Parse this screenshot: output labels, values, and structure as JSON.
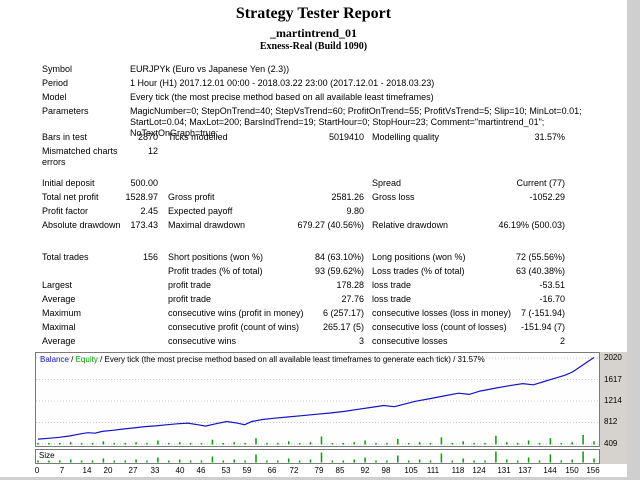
{
  "report": {
    "title": "Strategy Tester Report",
    "ea_name": "_martintrend_01",
    "server": "Exness-Real (Build 1090)",
    "info_rows": [
      {
        "label": "Symbol",
        "value": "EURJPYk (Euro vs Japanese Yen (2.3))"
      },
      {
        "label": "Period",
        "value": "1 Hour (H1) 2017.12.01 00:00 - 2018.03.22 23:00 (2017.12.01 - 2018.03.23)"
      },
      {
        "label": "Model",
        "value": "Every tick (the most precise method based on all available least timeframes)"
      },
      {
        "label": "Parameters",
        "value": "MagicNumber=0; StepOnTrend=40; StepVsTrend=60; ProfitOnTrend=55; ProfitVsTrend=5; Slip=10; MinLot=0.01; StartLot=0.04; MaxLot=200; BarsIndTrend=19; StartHour=0; StopHour=23; Comment=\"martintrend_01\"; NoTextOnGraph=true;",
        "tall": true
      }
    ],
    "stat_rows": [
      {
        "c1": "Bars in test",
        "c2": "2870",
        "c3": "Ticks modelled",
        "c4": "5019410",
        "c5": "Modelling quality",
        "c6": "31.57%"
      },
      {
        "c1": "Mismatched charts errors",
        "c2": "12",
        "tall": true
      },
      {
        "c1": "Initial deposit",
        "c2": "500.00",
        "c5": "Spread",
        "c6": "Current (77)",
        "gap": true
      },
      {
        "c1": "Total net profit",
        "c2": "1528.97",
        "c3": "Gross profit",
        "c4": "2581.26",
        "c5": "Gross loss",
        "c6": "-1052.29"
      },
      {
        "c1": "Profit factor",
        "c2": "2.45",
        "c3": "Expected payoff",
        "c4": "9.80"
      },
      {
        "c1": "Absolute drawdown",
        "c2": "173.43",
        "c3": "Maximal drawdown",
        "c4": "679.27 (40.56%)",
        "c5": "Relative drawdown",
        "c6": "46.19% (500.03)",
        "tall": true
      },
      {
        "c1": "Total trades",
        "c2": "156",
        "c3": "Short positions (won %)",
        "c4": "84 (63.10%)",
        "c5": "Long positions (won %)",
        "c6": "72 (55.56%)",
        "gap": true
      },
      {
        "c3": "Profit trades (% of total)",
        "c4": "93 (59.62%)",
        "c5": "Loss trades (% of total)",
        "c6": "63 (40.38%)"
      },
      {
        "c1": "Largest",
        "c3": "profit trade",
        "c4": "178.28",
        "c5": "loss trade",
        "c6": "-53.51"
      },
      {
        "c1": "Average",
        "c3": "profit trade",
        "c4": "27.76",
        "c5": "loss trade",
        "c6": "-16.70"
      },
      {
        "c1": "Maximum",
        "c3": "consecutive wins (profit in money)",
        "c4": "6 (257.17)",
        "c5": "consecutive losses (loss in money)",
        "c6": "7 (-151.94)"
      },
      {
        "c1": "Maximal",
        "c3": "consecutive profit (count of wins)",
        "c4": "265.17 (5)",
        "c5": "consecutive loss (count of losses)",
        "c6": "-151.94 (7)"
      },
      {
        "c1": "Average",
        "c3": "consecutive wins",
        "c4": "3",
        "c5": "consecutive losses",
        "c6": "2"
      }
    ]
  },
  "chart_data": {
    "type": "line",
    "title": "Balance / Equity / Every tick (the most precise method based on all available least timeframes to generate each tick) / 31.57%",
    "header_parts": [
      {
        "text": "Balance",
        "color": "#1414c8"
      },
      {
        "text": " / ",
        "color": "#000000"
      },
      {
        "text": "Equity",
        "color": "#00a000"
      },
      {
        "text": " / Every tick (the most precise method based on all available least timeframes to generate each tick) / 31.57%",
        "color": "#000000"
      }
    ],
    "size_label": "Size",
    "x_ticks": [
      0,
      7,
      14,
      20,
      27,
      33,
      40,
      46,
      53,
      59,
      66,
      72,
      79,
      85,
      92,
      98,
      105,
      111,
      118,
      124,
      131,
      137,
      144,
      150,
      156
    ],
    "y_ticks": [
      409,
      812,
      1214,
      1617,
      2020
    ],
    "xlim": [
      0,
      156
    ],
    "ylim": [
      409,
      2020
    ],
    "grid": "horizontal-dotted",
    "legend_position": "top-left",
    "colors": {
      "balance": "#1414c8",
      "equity": "#00a000",
      "grid": "#c8c8c8",
      "axis_strip": "#d6d3ce"
    },
    "series": [
      {
        "name": "Balance",
        "color": "#1414c8",
        "x": [
          0,
          3,
          6,
          9,
          12,
          14,
          16,
          18,
          21,
          24,
          27,
          30,
          33,
          36,
          39,
          42,
          45,
          47,
          50,
          53,
          56,
          58,
          60,
          63,
          66,
          70,
          74,
          78,
          82,
          86,
          90,
          94,
          97,
          100,
          103,
          106,
          110,
          114,
          118,
          121,
          124,
          128,
          132,
          136,
          139,
          142,
          145,
          148,
          150,
          152,
          154,
          156
        ],
        "y": [
          500,
          515,
          535,
          560,
          600,
          620,
          612,
          645,
          665,
          690,
          710,
          735,
          748,
          768,
          788,
          800,
          768,
          745,
          790,
          830,
          798,
          770,
          830,
          868,
          890,
          915,
          940,
          965,
          990,
          1020,
          1060,
          1100,
          1130,
          1108,
          1160,
          1210,
          1260,
          1310,
          1360,
          1338,
          1400,
          1450,
          1500,
          1540,
          1518,
          1580,
          1640,
          1700,
          1760,
          1850,
          1940,
          2028.97
        ]
      }
    ],
    "lot_bars": [
      2,
      2,
      2,
      3,
      2,
      2,
      4,
      2,
      2,
      3,
      2,
      5,
      2,
      3,
      2,
      2,
      6,
      2,
      3,
      2,
      8,
      2,
      2,
      4,
      2,
      3,
      10,
      2,
      2,
      3,
      5,
      2,
      2,
      7,
      2,
      3,
      2,
      9,
      2,
      4,
      2,
      2,
      11,
      3,
      2,
      5,
      2,
      8,
      2,
      3,
      12,
      4
    ]
  }
}
